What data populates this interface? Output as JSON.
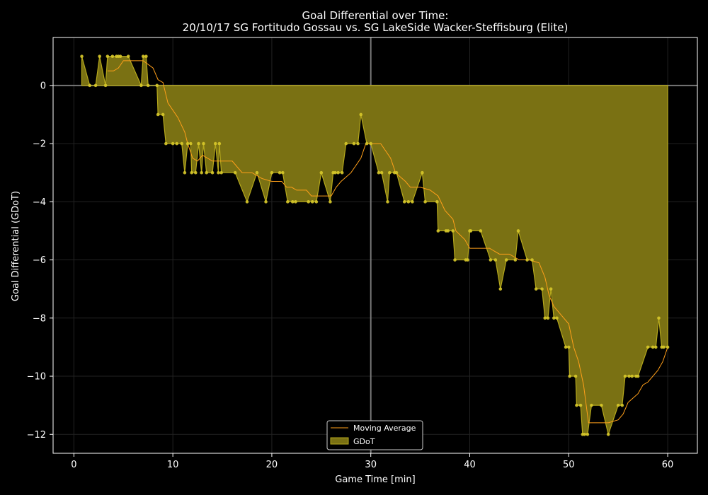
{
  "chart_data": {
    "type": "area",
    "title": "Goal Differential over Time:",
    "subtitle": "20/10/17 SG Fortitudo Gossau  vs.  SG LakeSide Wacker-Steffisburg (Elite)",
    "xlabel": "Game Time [min]",
    "ylabel": "Goal Differential (GDoT)",
    "xlim": [
      -2.1,
      63.0
    ],
    "ylim": [
      -12.65,
      1.65
    ],
    "xticks": [
      0,
      10,
      20,
      30,
      40,
      50,
      60
    ],
    "yticks": [
      0,
      -2,
      -4,
      -6,
      -8,
      -10,
      -12
    ],
    "xtick_labels": [
      "0",
      "10",
      "20",
      "30",
      "40",
      "50",
      "60"
    ],
    "ytick_labels": [
      "0",
      "−2",
      "−4",
      "−6",
      "−8",
      "−10",
      "−12"
    ],
    "grid": true,
    "halftime_line_x": 30,
    "zero_line_y": 0,
    "legend_position": "lower center",
    "colors": {
      "area_fill": "#7a7113",
      "area_edge": "#b5a81c",
      "markers": "#d6c72a",
      "moving_average": "#ff9f1a",
      "reference_lines": "#888888",
      "grid": "#222222",
      "axes": "#ffffff"
    },
    "series": [
      {
        "name": "GDoT",
        "kind": "area-with-markers",
        "points": [
          [
            0.8,
            1
          ],
          [
            1.6,
            0
          ],
          [
            2.2,
            0
          ],
          [
            2.6,
            1
          ],
          [
            3.2,
            0
          ],
          [
            3.4,
            1
          ],
          [
            3.9,
            1
          ],
          [
            4.3,
            1
          ],
          [
            4.5,
            1
          ],
          [
            4.7,
            1
          ],
          [
            5.5,
            1
          ],
          [
            6.8,
            0
          ],
          [
            7.0,
            1
          ],
          [
            7.3,
            1
          ],
          [
            7.5,
            0
          ],
          [
            8.4,
            0
          ],
          [
            8.5,
            -1
          ],
          [
            9.0,
            -1
          ],
          [
            9.3,
            -2
          ],
          [
            10.0,
            -2
          ],
          [
            10.4,
            -2
          ],
          [
            10.9,
            -2
          ],
          [
            11.2,
            -3
          ],
          [
            11.5,
            -2
          ],
          [
            11.8,
            -2
          ],
          [
            11.9,
            -3
          ],
          [
            12.3,
            -3
          ],
          [
            12.6,
            -2
          ],
          [
            12.9,
            -3
          ],
          [
            13.1,
            -2
          ],
          [
            13.4,
            -3
          ],
          [
            14.0,
            -3
          ],
          [
            14.3,
            -2
          ],
          [
            14.6,
            -3
          ],
          [
            14.7,
            -2
          ],
          [
            14.9,
            -3
          ],
          [
            16.3,
            -3
          ],
          [
            17.5,
            -4
          ],
          [
            18.5,
            -3
          ],
          [
            19.4,
            -4
          ],
          [
            20.0,
            -3
          ],
          [
            20.8,
            -3
          ],
          [
            21.1,
            -3
          ],
          [
            21.6,
            -4
          ],
          [
            22.1,
            -4
          ],
          [
            22.4,
            -4
          ],
          [
            23.7,
            -4
          ],
          [
            24.1,
            -4
          ],
          [
            24.5,
            -4
          ],
          [
            25.0,
            -3
          ],
          [
            25.9,
            -4
          ],
          [
            26.2,
            -3
          ],
          [
            26.4,
            -3
          ],
          [
            26.7,
            -3
          ],
          [
            27.1,
            -3
          ],
          [
            27.5,
            -2
          ],
          [
            28.3,
            -2
          ],
          [
            28.7,
            -2
          ],
          [
            29.0,
            -1
          ],
          [
            29.6,
            -2
          ],
          [
            30.0,
            -2
          ],
          [
            30.8,
            -3
          ],
          [
            31.1,
            -3
          ],
          [
            31.7,
            -4
          ],
          [
            31.9,
            -3
          ],
          [
            32.4,
            -3
          ],
          [
            32.6,
            -3
          ],
          [
            33.4,
            -4
          ],
          [
            33.8,
            -4
          ],
          [
            34.2,
            -4
          ],
          [
            35.2,
            -3
          ],
          [
            35.5,
            -4
          ],
          [
            36.7,
            -4
          ],
          [
            36.8,
            -5
          ],
          [
            37.6,
            -5
          ],
          [
            37.8,
            -5
          ],
          [
            38.3,
            -5
          ],
          [
            38.5,
            -6
          ],
          [
            39.6,
            -6
          ],
          [
            39.8,
            -6
          ],
          [
            40.0,
            -5
          ],
          [
            40.1,
            -5
          ],
          [
            41.1,
            -5
          ],
          [
            42.1,
            -6
          ],
          [
            42.6,
            -6
          ],
          [
            43.1,
            -7
          ],
          [
            43.7,
            -6
          ],
          [
            44.6,
            -6
          ],
          [
            44.9,
            -5
          ],
          [
            45.8,
            -6
          ],
          [
            46.3,
            -6
          ],
          [
            46.7,
            -7
          ],
          [
            47.3,
            -7
          ],
          [
            47.6,
            -8
          ],
          [
            47.9,
            -8
          ],
          [
            48.2,
            -7
          ],
          [
            48.5,
            -8
          ],
          [
            48.8,
            -8
          ],
          [
            49.7,
            -9
          ],
          [
            50.0,
            -9
          ],
          [
            50.1,
            -10
          ],
          [
            50.7,
            -10
          ],
          [
            50.8,
            -11
          ],
          [
            51.2,
            -11
          ],
          [
            51.4,
            -12
          ],
          [
            51.6,
            -12
          ],
          [
            51.9,
            -12
          ],
          [
            52.3,
            -11
          ],
          [
            53.3,
            -11
          ],
          [
            54.0,
            -12
          ],
          [
            55.0,
            -11
          ],
          [
            55.4,
            -11
          ],
          [
            55.7,
            -10
          ],
          [
            56.1,
            -10
          ],
          [
            56.4,
            -10
          ],
          [
            56.8,
            -10
          ],
          [
            57.0,
            -10
          ],
          [
            58.0,
            -9
          ],
          [
            58.5,
            -9
          ],
          [
            58.8,
            -9
          ],
          [
            59.1,
            -8
          ],
          [
            59.4,
            -9
          ],
          [
            59.6,
            -9
          ],
          [
            60.0,
            -9
          ]
        ]
      },
      {
        "name": "Moving Average",
        "kind": "line",
        "points": [
          [
            3.4,
            0.5
          ],
          [
            4.0,
            0.5
          ],
          [
            4.5,
            0.6
          ],
          [
            5.0,
            0.85
          ],
          [
            6.0,
            0.85
          ],
          [
            7.0,
            0.85
          ],
          [
            8.0,
            0.6
          ],
          [
            8.5,
            0.2
          ],
          [
            9.0,
            0.1
          ],
          [
            9.5,
            -0.6
          ],
          [
            10.5,
            -1.1
          ],
          [
            11.2,
            -1.6
          ],
          [
            11.5,
            -2.0
          ],
          [
            12.0,
            -2.5
          ],
          [
            12.5,
            -2.6
          ],
          [
            13.0,
            -2.4
          ],
          [
            14.0,
            -2.6
          ],
          [
            15.0,
            -2.6
          ],
          [
            16.0,
            -2.6
          ],
          [
            17.0,
            -3.0
          ],
          [
            18.0,
            -3.0
          ],
          [
            19.0,
            -3.2
          ],
          [
            20.0,
            -3.3
          ],
          [
            21.0,
            -3.3
          ],
          [
            21.5,
            -3.5
          ],
          [
            22.0,
            -3.5
          ],
          [
            22.5,
            -3.6
          ],
          [
            23.5,
            -3.6
          ],
          [
            24.0,
            -3.8
          ],
          [
            25.0,
            -3.8
          ],
          [
            26.0,
            -3.8
          ],
          [
            26.5,
            -3.5
          ],
          [
            27.0,
            -3.3
          ],
          [
            28.0,
            -3.0
          ],
          [
            29.0,
            -2.5
          ],
          [
            29.5,
            -2.0
          ],
          [
            30.0,
            -2.0
          ],
          [
            31.0,
            -2.0
          ],
          [
            32.0,
            -2.5
          ],
          [
            32.5,
            -3.0
          ],
          [
            33.5,
            -3.3
          ],
          [
            34.0,
            -3.5
          ],
          [
            35.0,
            -3.5
          ],
          [
            36.0,
            -3.6
          ],
          [
            36.8,
            -3.8
          ],
          [
            37.5,
            -4.3
          ],
          [
            38.3,
            -4.6
          ],
          [
            38.6,
            -5.0
          ],
          [
            39.5,
            -5.3
          ],
          [
            40.0,
            -5.6
          ],
          [
            41.0,
            -5.6
          ],
          [
            42.0,
            -5.6
          ],
          [
            43.0,
            -5.8
          ],
          [
            44.0,
            -5.8
          ],
          [
            45.0,
            -6.0
          ],
          [
            46.0,
            -6.0
          ],
          [
            47.0,
            -6.1
          ],
          [
            47.6,
            -6.6
          ],
          [
            48.0,
            -7.2
          ],
          [
            48.5,
            -7.6
          ],
          [
            49.0,
            -7.8
          ],
          [
            49.5,
            -8.0
          ],
          [
            50.0,
            -8.2
          ],
          [
            50.5,
            -9.0
          ],
          [
            51.0,
            -9.5
          ],
          [
            51.5,
            -10.3
          ],
          [
            52.0,
            -11.6
          ],
          [
            53.0,
            -11.6
          ],
          [
            54.0,
            -11.6
          ],
          [
            55.0,
            -11.5
          ],
          [
            55.5,
            -11.3
          ],
          [
            56.0,
            -10.9
          ],
          [
            57.0,
            -10.6
          ],
          [
            57.5,
            -10.3
          ],
          [
            58.0,
            -10.2
          ],
          [
            59.0,
            -9.8
          ],
          [
            59.5,
            -9.5
          ],
          [
            60.0,
            -9.0
          ]
        ]
      }
    ],
    "legend": {
      "items": [
        {
          "label": "Moving Average",
          "kind": "line"
        },
        {
          "label": "GDoT",
          "kind": "patch"
        }
      ]
    }
  }
}
